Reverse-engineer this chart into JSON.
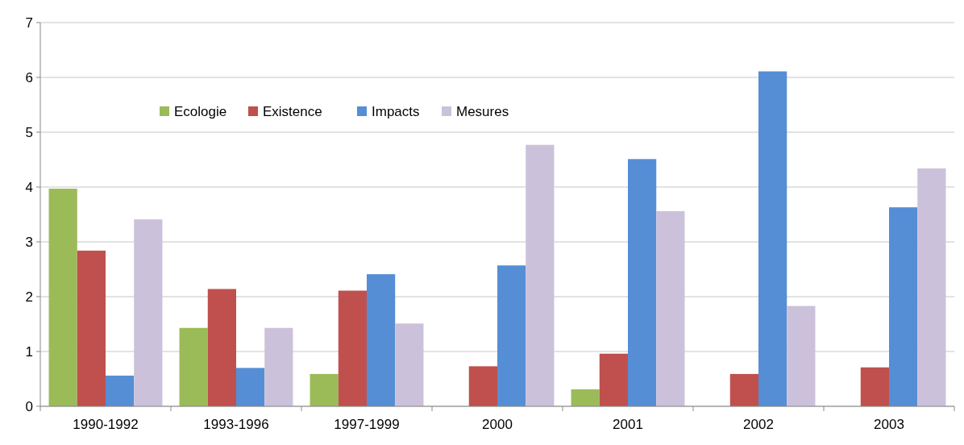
{
  "chart_data": {
    "type": "bar",
    "categories": [
      "1990-1992",
      "1993-1996",
      "1997-1999",
      "2000",
      "2001",
      "2002",
      "2003"
    ],
    "series": [
      {
        "name": "Ecologie",
        "color": "#9bbb59",
        "values": [
          3.97,
          1.43,
          0.59,
          0,
          0.31,
          0,
          0
        ]
      },
      {
        "name": "Existence",
        "color": "#c0504d",
        "values": [
          2.84,
          2.14,
          2.11,
          0.73,
          0.96,
          0.59,
          0.71
        ]
      },
      {
        "name": "Impacts",
        "color": "#558ed5",
        "values": [
          0.56,
          0.7,
          2.41,
          2.57,
          4.51,
          6.11,
          3.63
        ]
      },
      {
        "name": "Mesures",
        "color": "#ccc1da",
        "values": [
          3.41,
          1.43,
          1.51,
          4.77,
          3.56,
          1.83,
          4.34
        ]
      }
    ],
    "ylim": [
      0,
      7
    ],
    "yticks": [
      0,
      1,
      2,
      3,
      4,
      5,
      6,
      7
    ],
    "grid": "y",
    "legend": "top left"
  }
}
